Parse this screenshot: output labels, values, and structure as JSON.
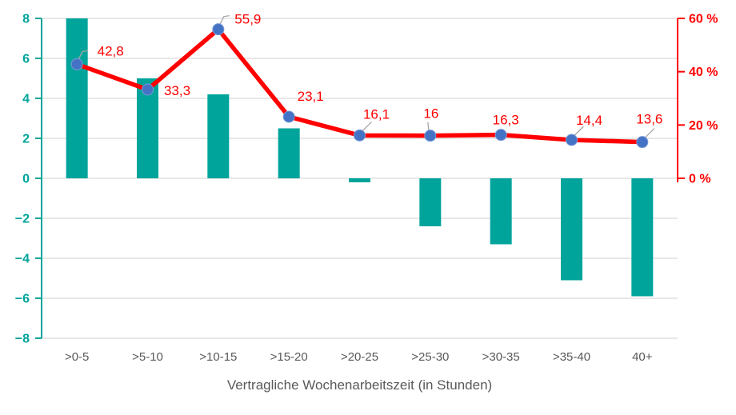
{
  "chart_data": {
    "type": "combo-bar-line",
    "title": "",
    "xlabel": "Vertragliche Wochenarbeitszeit (in Stunden)",
    "categories": [
      ">0-5",
      ">5-10",
      ">10-15",
      ">15-20",
      ">20-25",
      ">25-30",
      ">30-35",
      ">35-40",
      "40+"
    ],
    "series": [
      {
        "name": "balance-bars",
        "type": "bar",
        "axis": "left",
        "color": "#00A49B",
        "values": [
          8.0,
          5.0,
          4.2,
          2.5,
          -0.2,
          -2.4,
          -3.3,
          -5.1,
          -5.9
        ]
      },
      {
        "name": "percentage-line",
        "type": "line",
        "axis": "right",
        "color": "#FF0000",
        "marker_color": "#4472C4",
        "values": [
          42.8,
          33.3,
          55.9,
          23.1,
          16.1,
          16,
          16.3,
          14.4,
          13.6
        ],
        "data_labels": [
          "42,8",
          "33,3",
          "55,9",
          "23,1",
          "16,1",
          "16",
          "16,3",
          "14,4",
          "13,6"
        ]
      }
    ],
    "left_axis": {
      "min": -8,
      "max": 8,
      "step": 2,
      "tick_labels": [
        "8",
        "6",
        "4",
        "2",
        "0",
        "−2",
        "−4",
        "−6",
        "−8"
      ],
      "color": "#00A49B"
    },
    "right_axis": {
      "min": 0,
      "max": 60,
      "step": 20,
      "tick_labels": [
        "60 %",
        "40 %",
        "20 %",
        "0 %"
      ],
      "color": "#FF0000"
    },
    "grid": true,
    "legend": "none",
    "colors": {
      "background": "#FFFFFF",
      "grid": "#D9D9D9",
      "category_text": "#595959",
      "title_text": "#595959",
      "leader": "#A6A6A6",
      "marker_ring": "#7A9AD9"
    }
  }
}
